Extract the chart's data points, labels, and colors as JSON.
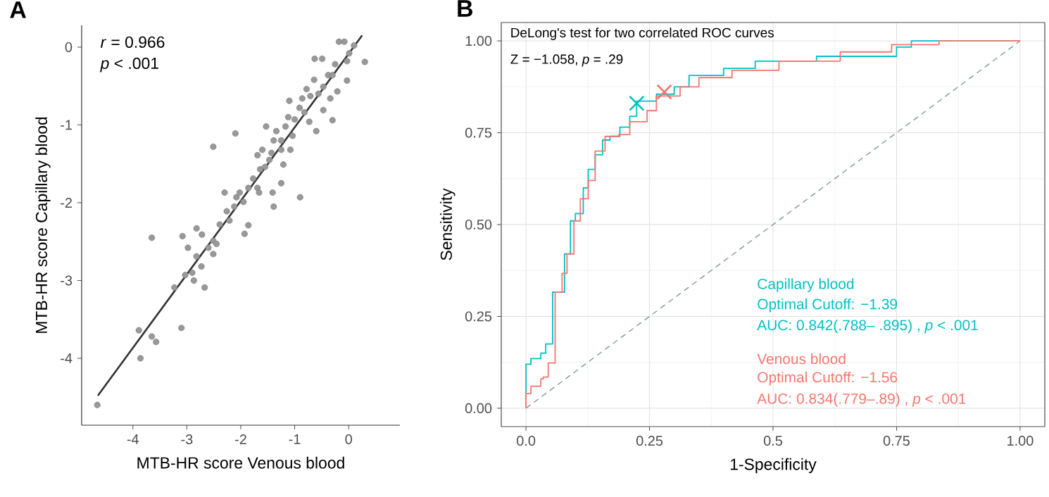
{
  "chart_data": [
    {
      "type": "scatter",
      "title": "A",
      "xlabel": "MTB-HR score Venous blood",
      "ylabel": "MTB-HR score Capillary blood",
      "xlim": [
        -4.95,
        0.95
      ],
      "ylim": [
        -4.86,
        0.28
      ],
      "xticks": [
        -4,
        -3,
        -2,
        -1,
        0
      ],
      "yticks": [
        -4,
        -3,
        -2,
        -1,
        0
      ],
      "annotations": [
        "*r* = 0.966",
        "*p* < .001"
      ],
      "series": [
        {
          "type": "scatter",
          "color": "#999999",
          "marker": "circle",
          "x": [
            -4.66,
            -3.89,
            -3.86,
            -3.65,
            -3.57,
            -3.65,
            -3.1,
            -3.23,
            -3.08,
            -2.98,
            -2.87,
            -2.82,
            -2.72,
            -2.73,
            -2.67,
            -2.6,
            -2.51,
            -2.51,
            -2.45,
            -2.9,
            -3.03,
            -2.82,
            -2.51,
            -2.3,
            -2.26,
            -2.39,
            -2.21,
            -2.12,
            -2.08,
            -2.02,
            -1.95,
            -1.93,
            -1.86,
            -1.77,
            -1.69,
            -1.66,
            -1.64,
            -1.55,
            -1.53,
            -2.1,
            -1.47,
            -1.43,
            -1.39,
            -1.41,
            -1.39,
            -1.34,
            -1.25,
            -1.21,
            -1.17,
            -1.12,
            -1.1,
            -1.04,
            -1.0,
            -0.9,
            -0.91,
            -0.86,
            -0.82,
            -0.78,
            -0.71,
            -0.64,
            -0.63,
            -0.49,
            -0.56,
            -0.47,
            -0.38,
            -0.3,
            -0.3,
            -0.25,
            -0.21,
            -0.18,
            -0.08,
            -0.03,
            0.01,
            -0.03,
            0.3,
            0.1,
            -1.25,
            -1.86,
            -1.25,
            -0.73,
            -0.6,
            -0.47,
            -0.34,
            -1.69,
            -1.08,
            -1.6
          ],
          "values": [
            -4.6,
            -3.64,
            -4.0,
            -3.72,
            -3.79,
            -2.45,
            -3.61,
            -3.09,
            -2.43,
            -2.58,
            -3.0,
            -2.33,
            -2.41,
            -2.82,
            -3.09,
            -2.58,
            -2.49,
            -1.28,
            -2.53,
            -2.9,
            -2.93,
            -2.69,
            -2.66,
            -1.87,
            -2.11,
            -2.28,
            -2.23,
            -2.05,
            -1.93,
            -1.87,
            -1.99,
            -2.4,
            -1.81,
            -1.69,
            -1.81,
            -1.87,
            -1.57,
            -1.54,
            -1.02,
            -1.11,
            -1.45,
            -1.36,
            -1.2,
            -1.87,
            -2.05,
            -1.08,
            -1.2,
            -1.51,
            -1.02,
            -0.9,
            -0.69,
            -1.14,
            -0.93,
            -1.93,
            -0.78,
            -0.66,
            -0.84,
            -0.54,
            -0.63,
            -0.42,
            -0.15,
            -0.15,
            -0.6,
            -0.51,
            -0.36,
            -0.36,
            -0.94,
            -0.22,
            -0.57,
            0.07,
            0.07,
            -0.18,
            -0.08,
            -0.43,
            -0.19,
            0.02,
            -1.75,
            -2.29,
            -1.32,
            -0.96,
            -1.08,
            -0.81,
            -0.66,
            -1.39,
            -1.32,
            -1.32
          ]
        },
        {
          "type": "line",
          "color": "#333333",
          "x": [
            -4.65,
            0.25
          ],
          "values": [
            -4.48,
            0.15
          ]
        }
      ]
    },
    {
      "type": "step",
      "title": "B",
      "xlabel": "1-Specificity",
      "ylabel": "Sensitivity",
      "grid": true,
      "xlim": [
        -0.05,
        1.05
      ],
      "ylim": [
        -0.05,
        1.05
      ],
      "xticks": [
        {
          "value": 0,
          "label": "0.0"
        },
        0.25,
        0.5,
        0.75,
        {
          "value": 1,
          "label": "1.00"
        }
      ],
      "yticks": [
        {
          "value": 0,
          "label": "0.00"
        },
        0.25,
        {
          "value": 0.5,
          "label": "0.50"
        },
        0.75,
        {
          "value": 1,
          "label": "1.00"
        }
      ],
      "annotations": [
        "DeLong's test for two correlated ROC curves",
        "Z = −1.058, *p* = .29",
        "Optimal Cutoff: −1.39",
        "AUC:  0.842(.788– .895) , *p* < .001",
        "Optimal Cutoff: −1.56",
        "AUC:  0.834(.779–.89) , *p* < .001"
      ],
      "series": [
        {
          "type": "line",
          "color": "#7f9a9a",
          "line_style": "dashed",
          "x": [
            0,
            1
          ],
          "values": [
            0,
            1
          ]
        },
        {
          "name": "Capillary blood",
          "color": "#00bfc4",
          "x": [
            0,
            0,
            0.01,
            0.01,
            0.03,
            0.04,
            0.054,
            0.078,
            0.09,
            0.1,
            0.116,
            0.126,
            0.14,
            0.155,
            0.17,
            0.19,
            0.21,
            0.224,
            0.264,
            0.3,
            0.33,
            0.4,
            0.464,
            0.588,
            0.75,
            0.78,
            1
          ],
          "values": [
            0,
            0.12,
            0.12,
            0.135,
            0.15,
            0.175,
            0.316,
            0.42,
            0.51,
            0.53,
            0.6,
            0.65,
            0.69,
            0.73,
            0.74,
            0.765,
            0.795,
            0.836,
            0.855,
            0.875,
            0.906,
            0.925,
            0.945,
            0.958,
            0.983,
            1,
            1
          ]
        },
        {
          "name": "Venous blood",
          "color": "#f8766d",
          "x": [
            0,
            0,
            0.01,
            0.03,
            0.035,
            0.045,
            0.059,
            0.073,
            0.083,
            0.097,
            0.11,
            0.126,
            0.14,
            0.16,
            0.188,
            0.21,
            0.245,
            0.264,
            0.312,
            0.35,
            0.417,
            0.512,
            0.636,
            0.74,
            0.836,
            1
          ],
          "values": [
            0,
            0.04,
            0.06,
            0.08,
            0.085,
            0.123,
            0.316,
            0.367,
            0.42,
            0.51,
            0.57,
            0.62,
            0.7,
            0.74,
            0.745,
            0.78,
            0.81,
            0.85,
            0.875,
            0.9,
            0.92,
            0.945,
            0.97,
            0.99,
            1,
            1
          ]
        },
        {
          "type": "scatter",
          "color": "#00bfc4",
          "marker": "cross",
          "x": [
            0.224
          ],
          "values": [
            0.83
          ]
        },
        {
          "type": "scatter",
          "color": "#f8766d",
          "marker": "cross",
          "x": [
            0.28
          ],
          "values": [
            0.861
          ]
        }
      ]
    }
  ]
}
